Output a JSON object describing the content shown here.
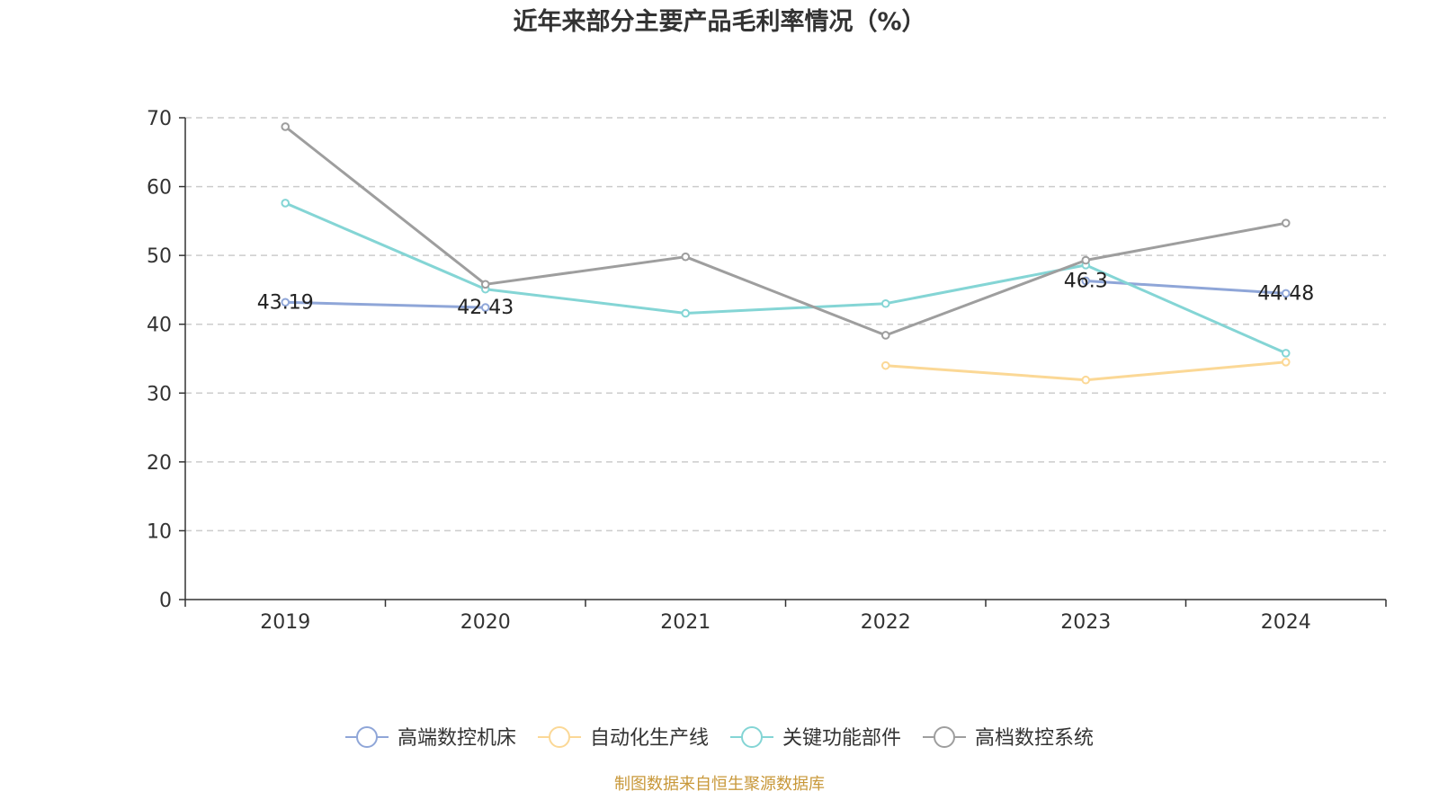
{
  "source_note": "制图数据来自恒生聚源数据库",
  "colors": {
    "footer": "#c8983a",
    "axis": "#333333",
    "grid": "#cccccc",
    "label": "#222222"
  },
  "chart_data": {
    "type": "line",
    "title": "近年来部分主要产品毛利率情况（%）",
    "xlabel": "",
    "ylabel": "",
    "categories": [
      "2019",
      "2020",
      "2021",
      "2022",
      "2023",
      "2024"
    ],
    "ylim": [
      0,
      70
    ],
    "yticks": [
      "0",
      "10",
      "20",
      "30",
      "40",
      "50",
      "60",
      "70"
    ],
    "grid": true,
    "legend_position": "bottom-center",
    "series": [
      {
        "name": "高端数控机床",
        "color": "#8fa6d8",
        "values": [
          43.19,
          42.43,
          null,
          null,
          46.3,
          44.48
        ],
        "data_labels": [
          "43.19",
          "42.43",
          null,
          null,
          "46.3",
          "44.48"
        ]
      },
      {
        "name": "自动化生产线",
        "color": "#fbd896",
        "values": [
          null,
          null,
          null,
          34.0,
          31.9,
          34.5
        ],
        "data_labels": null
      },
      {
        "name": "关键功能部件",
        "color": "#84d5d5",
        "values": [
          57.6,
          45.1,
          41.6,
          43.0,
          48.6,
          35.8
        ],
        "data_labels": null
      },
      {
        "name": "高档数控系统",
        "color": "#9e9e9e",
        "values": [
          68.7,
          45.8,
          49.8,
          38.4,
          49.3,
          54.7
        ],
        "data_labels": null
      }
    ]
  }
}
